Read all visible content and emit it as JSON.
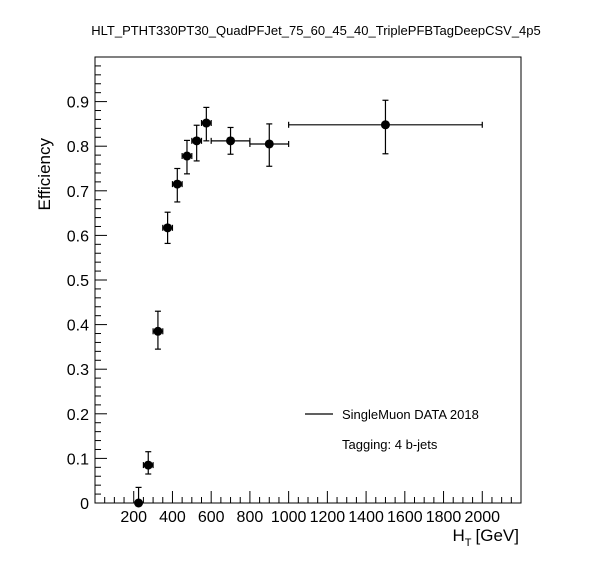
{
  "chart_data": {
    "type": "scatter",
    "title": "HLT_PTHT330PT30_QuadPFJet_75_60_45_40_TriplePFBTagDeepCSV_4p5",
    "xlabel": "H",
    "xlabel_sub": "T",
    "xlabel_unit": "[GeV]",
    "ylabel": "Efficiency",
    "xlim": [
      0,
      2200
    ],
    "ylim": [
      0,
      1
    ],
    "x_ticks": [
      200,
      400,
      600,
      800,
      1000,
      1200,
      1400,
      1600,
      1800,
      2000
    ],
    "x_tick_labels": [
      "200",
      "400",
      "600",
      "800",
      "1000",
      "1200",
      "1400",
      "1600",
      "1800",
      "2000"
    ],
    "y_ticks": [
      0,
      0.1,
      0.2,
      0.3,
      0.4,
      0.5,
      0.6,
      0.7,
      0.8,
      0.9
    ],
    "y_tick_labels": [
      "0",
      "0.1",
      "0.2",
      "0.3",
      "0.4",
      "0.5",
      "0.6",
      "0.7",
      "0.8",
      "0.9"
    ],
    "grid": false,
    "legend_position": "bottom-right",
    "legend": [
      "SingleMuon DATA 2018"
    ],
    "annotation": "Tagging: 4 b-jets",
    "series": [
      {
        "points": [
          {
            "x": 225,
            "xerr": 5,
            "y": 0.0,
            "yerr_low": 0.0,
            "yerr_high": 0.035
          },
          {
            "x": 275,
            "xerr": 25,
            "y": 0.085,
            "yerr_low": 0.02,
            "yerr_high": 0.03
          },
          {
            "x": 325,
            "xerr": 25,
            "y": 0.385,
            "yerr_low": 0.04,
            "yerr_high": 0.045
          },
          {
            "x": 375,
            "xerr": 25,
            "y": 0.617,
            "yerr_low": 0.035,
            "yerr_high": 0.035
          },
          {
            "x": 425,
            "xerr": 25,
            "y": 0.715,
            "yerr_low": 0.04,
            "yerr_high": 0.035
          },
          {
            "x": 475,
            "xerr": 25,
            "y": 0.778,
            "yerr_low": 0.04,
            "yerr_high": 0.035
          },
          {
            "x": 525,
            "xerr": 25,
            "y": 0.812,
            "yerr_low": 0.045,
            "yerr_high": 0.035
          },
          {
            "x": 575,
            "xerr": 25,
            "y": 0.852,
            "yerr_low": 0.04,
            "yerr_high": 0.035
          },
          {
            "x": 700,
            "xerr": 100,
            "y": 0.812,
            "yerr_low": 0.03,
            "yerr_high": 0.03
          },
          {
            "x": 900,
            "xerr": 100,
            "y": 0.805,
            "yerr_low": 0.05,
            "yerr_high": 0.045
          },
          {
            "x": 1500,
            "xerr": 500,
            "y": 0.848,
            "yerr_low": 0.065,
            "yerr_high": 0.055
          }
        ]
      }
    ]
  }
}
